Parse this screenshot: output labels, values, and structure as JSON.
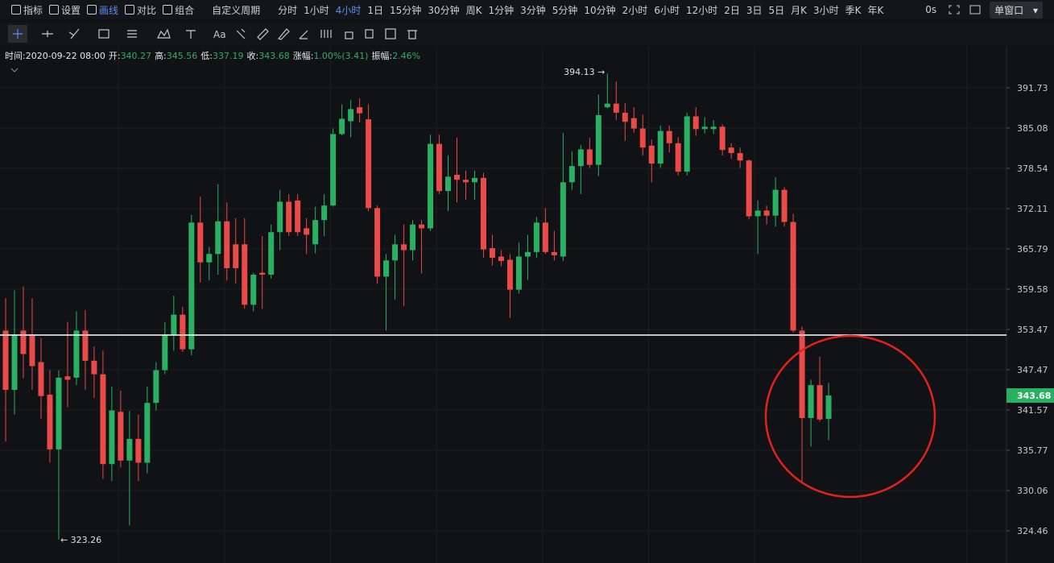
{
  "toolbar": {
    "tools": [
      "指标",
      "设置",
      "画线",
      "对比",
      "组合"
    ],
    "period_menu": "自定义周期",
    "periods": [
      "分时",
      "1小时",
      "4小时",
      "1日",
      "15分钟",
      "30分钟",
      "周K",
      "1分钟",
      "3分钟",
      "5分钟",
      "10分钟",
      "2小时",
      "6小时",
      "12小时",
      "2日",
      "3日",
      "5日",
      "月K",
      "3小时",
      "季K",
      "年K"
    ],
    "active_period": "4小时",
    "refresh": "0s",
    "window": "单窗口"
  },
  "drawing_toolbar": {
    "text_tool": "Aa"
  },
  "info": {
    "time": "时间:2020-09-22 08:00",
    "fields": [
      {
        "label": "开:",
        "value": "340.27"
      },
      {
        "label": "高:",
        "value": "345.56"
      },
      {
        "label": "低:",
        "value": "337.19"
      },
      {
        "label": "收:",
        "value": "343.68"
      },
      {
        "label": "涨幅:",
        "value": "1.00%(3.41)"
      },
      {
        "label": "振幅:",
        "value": "2.46%"
      }
    ]
  },
  "chart_data": {
    "type": "candlestick",
    "log_scale": true,
    "grid": true,
    "up_color": "#2ab062",
    "down_color": "#ea4a48",
    "ylim": [
      320.05,
      398.63
    ],
    "yticks": [
      391.73,
      385.08,
      378.54,
      372.11,
      365.79,
      359.58,
      353.47,
      347.47,
      341.57,
      335.77,
      330.06,
      324.46
    ],
    "open": [
      353.3,
      344.5,
      353.3,
      352.7,
      348.6,
      343.8,
      335.9,
      346.5,
      346.3,
      353.3,
      348.8,
      346.8,
      333.8,
      341.3,
      334.3,
      337.4,
      334.0,
      342.6,
      347.4,
      352.7,
      355.7,
      350.5,
      369.9,
      363.7,
      365.0,
      370.1,
      366.5,
      366.5,
      357.2,
      362.1,
      361.8,
      368.4,
      373.2,
      373.4,
      369.0,
      366.5,
      370.3,
      372.6,
      384.1,
      386.2,
      388.5,
      386.5,
      372.2,
      361.5,
      364.0,
      366.5,
      365.6,
      369.6,
      369.0,
      382.5,
      374.9,
      377.5,
      376.7,
      376.3,
      377.0,
      365.9,
      364.6,
      364.1,
      359.5,
      364.6,
      365.3,
      369.9,
      365.3,
      364.6,
      376.3,
      378.9,
      381.6,
      379.1,
      388.5,
      389.1,
      387.6,
      386.7,
      385.0,
      382.2,
      379.3,
      384.6,
      382.6,
      378.0,
      387.0,
      384.9,
      384.9,
      385.3,
      381.9,
      381.0,
      379.8,
      370.9,
      371.8,
      371.0,
      375.1,
      370.0,
      353.3,
      340.4,
      345.2,
      340.27
    ],
    "high": [
      358.2,
      359.4,
      360.0,
      358.2,
      352.2,
      347.4,
      347.4,
      354.6,
      356.2,
      356.4,
      350.9,
      350.3,
      345.0,
      344.4,
      341.4,
      340.9,
      345.0,
      348.6,
      354.6,
      358.6,
      356.9,
      371.1,
      374.0,
      366.1,
      376.0,
      373.1,
      370.6,
      370.6,
      362.1,
      367.8,
      369.6,
      375.1,
      374.4,
      374.4,
      370.6,
      372.4,
      374.4,
      385.0,
      389.0,
      389.7,
      390.0,
      389.0,
      372.6,
      365.0,
      368.0,
      369.6,
      370.3,
      370.3,
      384.0,
      384.0,
      380.6,
      383.5,
      378.2,
      378.2,
      377.8,
      368.0,
      365.6,
      365.0,
      366.8,
      368.0,
      370.8,
      372.2,
      368.6,
      384.3,
      381.3,
      382.3,
      383.5,
      390.6,
      394.13,
      392.8,
      389.2,
      388.5,
      387.3,
      383.2,
      385.5,
      385.5,
      383.6,
      387.6,
      388.5,
      386.9,
      386.4,
      385.7,
      382.6,
      381.9,
      380.0,
      373.4,
      372.6,
      377.1,
      375.5,
      371.3,
      353.9,
      346.0,
      349.4,
      345.56
    ],
    "low": [
      337.0,
      340.9,
      346.2,
      344.5,
      340.3,
      334.0,
      323.26,
      342.0,
      345.2,
      344.5,
      343.3,
      331.7,
      331.4,
      333.3,
      325.2,
      331.4,
      332.5,
      341.5,
      346.8,
      350.3,
      350.1,
      349.6,
      360.6,
      360.9,
      361.8,
      360.9,
      360.4,
      356.6,
      356.2,
      356.6,
      361.2,
      365.6,
      367.8,
      367.8,
      365.0,
      365.1,
      367.8,
      372.4,
      383.9,
      383.6,
      386.0,
      371.7,
      360.4,
      353.3,
      358.0,
      357.0,
      364.0,
      362.0,
      368.6,
      374.4,
      371.7,
      373.1,
      373.5,
      373.5,
      364.4,
      363.2,
      363.1,
      355.2,
      358.9,
      361.0,
      364.4,
      365.0,
      364.0,
      363.9,
      375.1,
      374.4,
      378.6,
      377.3,
      388.3,
      386.4,
      383.0,
      384.3,
      380.6,
      376.3,
      378.6,
      381.1,
      377.4,
      377.4,
      383.8,
      384.2,
      384.1,
      380.6,
      380.1,
      378.6,
      370.4,
      365.0,
      369.6,
      369.3,
      369.3,
      353.0,
      331.0,
      336.3,
      339.9,
      337.19
    ],
    "close": [
      344.5,
      352.7,
      349.8,
      348.0,
      343.6,
      335.9,
      346.3,
      346.0,
      353.3,
      348.8,
      346.8,
      333.8,
      341.5,
      334.3,
      337.4,
      334.0,
      342.6,
      347.4,
      352.7,
      355.7,
      350.5,
      369.9,
      363.7,
      365.0,
      370.1,
      362.8,
      362.8,
      357.2,
      361.8,
      361.8,
      368.4,
      373.2,
      368.4,
      368.4,
      368.0,
      370.3,
      372.6,
      384.1,
      386.6,
      388.2,
      387.5,
      372.2,
      361.5,
      364.0,
      366.5,
      365.6,
      369.6,
      369.0,
      382.5,
      374.9,
      377.2,
      376.7,
      376.3,
      377.0,
      365.7,
      364.4,
      363.9,
      359.5,
      364.6,
      365.3,
      369.9,
      365.3,
      364.8,
      376.3,
      378.9,
      381.6,
      379.1,
      387.2,
      389.1,
      387.6,
      386.1,
      385.0,
      381.9,
      379.3,
      384.6,
      382.6,
      378.0,
      387.0,
      384.9,
      385.3,
      385.3,
      381.5,
      381.0,
      379.8,
      370.9,
      371.8,
      371.0,
      375.1,
      370.0,
      353.3,
      340.4,
      345.2,
      340.2,
      343.68
    ],
    "hline": {
      "value": 352.63,
      "color": "#ffffff"
    },
    "last_price": 343.68,
    "max_label": {
      "value": 394.13,
      "label": "394.13 →"
    },
    "min_label": {
      "value": 323.26,
      "label": "← 323.26"
    }
  }
}
